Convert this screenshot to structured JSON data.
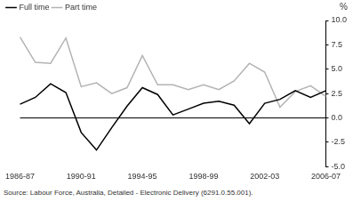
{
  "chart_data": {
    "type": "line",
    "ylabel": "%",
    "source": "Source: Labour Force, Australia, Detailed - Electronic Delivery (6291.0.55.001).",
    "categories": [
      "1986-87",
      null,
      null,
      null,
      "1990-91",
      null,
      null,
      null,
      "1994-95",
      null,
      null,
      null,
      "1998-99",
      null,
      null,
      null,
      "2002-03",
      null,
      null,
      null,
      "2006-07"
    ],
    "series": [
      {
        "name": "Full time",
        "color": "#000000",
        "values": [
          1.4,
          2.1,
          3.5,
          2.6,
          -1.5,
          -3.3,
          -1.0,
          1.2,
          3.1,
          2.4,
          0.3,
          0.9,
          1.5,
          1.7,
          1.3,
          -0.6,
          1.5,
          1.9,
          2.8,
          2.1,
          2.8
        ]
      },
      {
        "name": "Part time",
        "color": "#b3b3b3",
        "values": [
          8.3,
          5.7,
          5.6,
          8.2,
          3.2,
          3.6,
          2.5,
          3.1,
          6.4,
          3.4,
          3.4,
          2.9,
          3.4,
          2.9,
          3.8,
          5.6,
          4.7,
          1.1,
          2.7,
          3.3,
          2.2
        ]
      }
    ],
    "ylim": [
      -5,
      10
    ],
    "yticks": [
      {
        "value": -5,
        "label": "-5.0"
      },
      {
        "value": -2.5,
        "label": "-2.5"
      },
      {
        "value": 0,
        "label": "0.0"
      },
      {
        "value": 2.5,
        "label": "2.5"
      },
      {
        "value": 5,
        "label": "5.0"
      },
      {
        "value": 7.5,
        "label": "7.5"
      },
      {
        "value": 10,
        "label": "10.0"
      }
    ],
    "grid": false,
    "legend": "top-left"
  }
}
